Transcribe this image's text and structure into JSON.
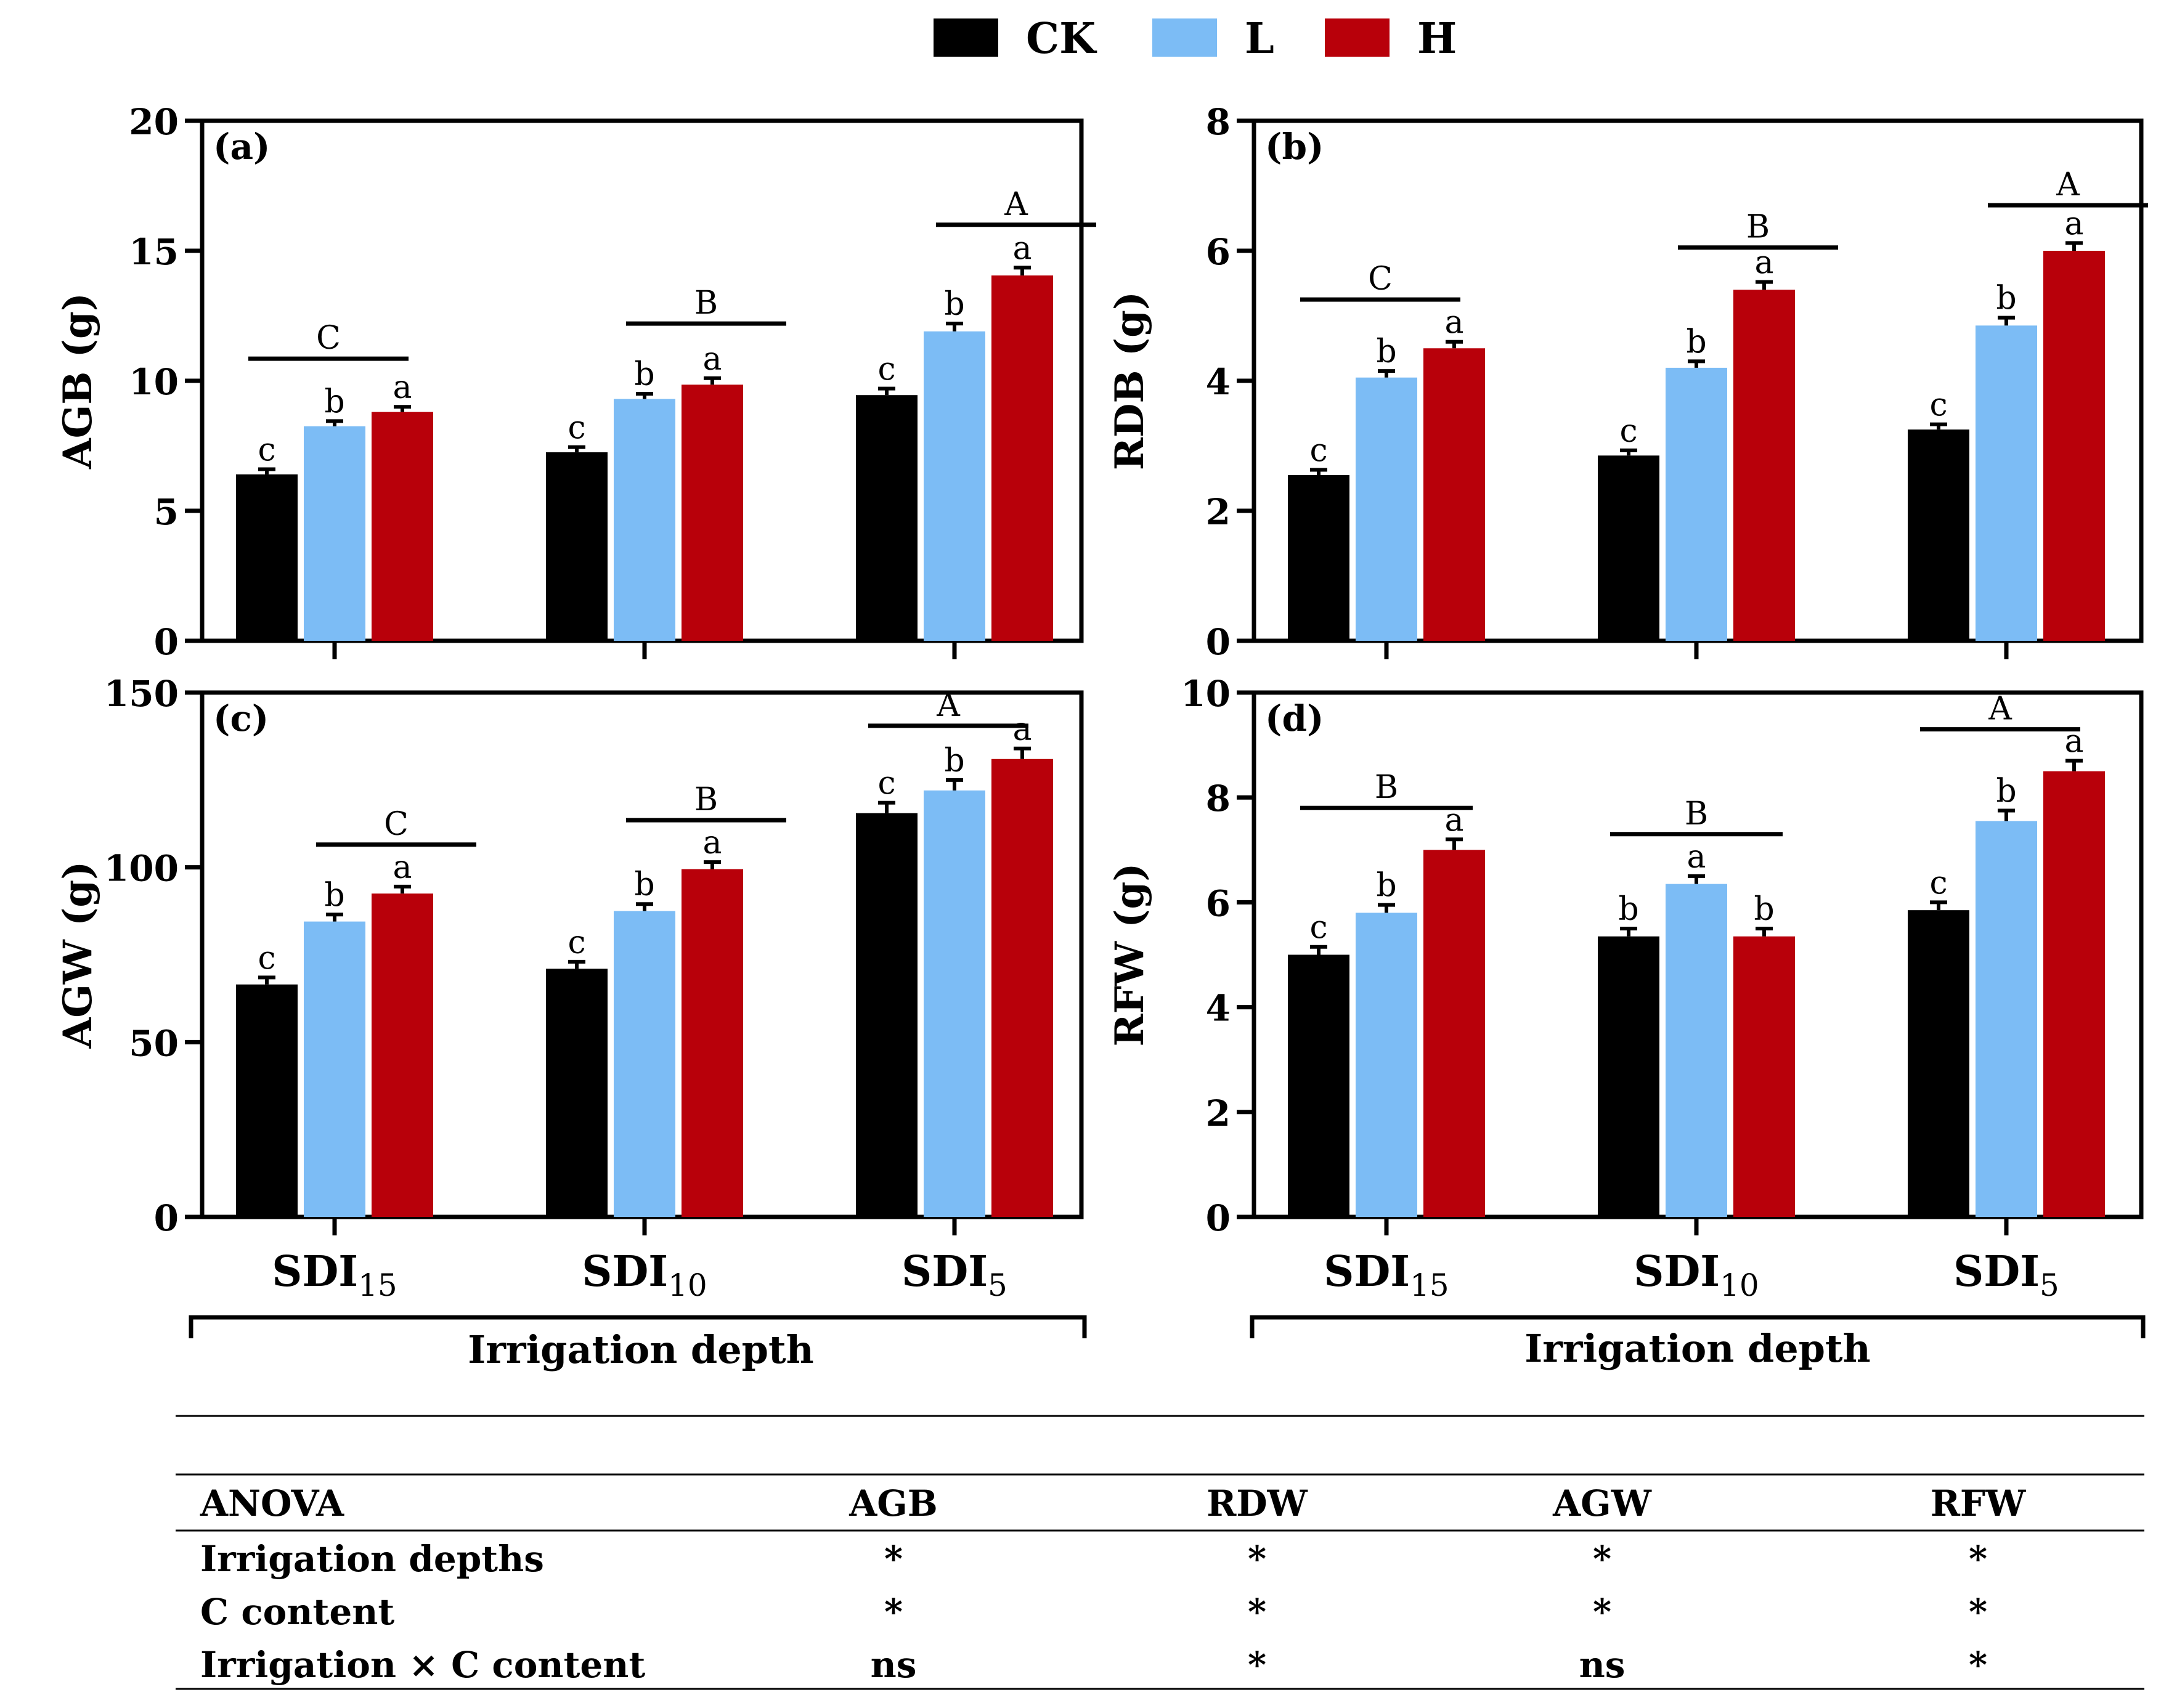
{
  "legend": [
    {
      "name": "CK",
      "color": "#000000"
    },
    {
      "name": "L",
      "color": "#7cbcf5"
    },
    {
      "name": "H",
      "color": "#b8000a"
    }
  ],
  "chart_data": [
    {
      "type": "bar",
      "panel": "(a)",
      "ylabel": "AGB (g)",
      "ylim": [
        0,
        20
      ],
      "yticks": [
        "0",
        "5",
        "10",
        "15",
        "20"
      ],
      "show_xlabels": false,
      "categories": [
        {
          "main": "SDI",
          "sub": "15"
        },
        {
          "main": "SDI",
          "sub": "10"
        },
        {
          "main": "SDI",
          "sub": "5"
        }
      ],
      "series": [
        {
          "name": "CK",
          "values": [
            6.4,
            7.25,
            9.45
          ],
          "errors": [
            0.2,
            0.2,
            0.25
          ],
          "letters": [
            "c",
            "c",
            "c"
          ]
        },
        {
          "name": "L",
          "values": [
            8.25,
            9.3,
            11.9
          ],
          "errors": [
            0.2,
            0.2,
            0.3
          ],
          "letters": [
            "b",
            "b",
            "b"
          ]
        },
        {
          "name": "H",
          "values": [
            8.8,
            9.85,
            14.05
          ],
          "errors": [
            0.2,
            0.25,
            0.3
          ],
          "letters": [
            "a",
            "a",
            "a"
          ]
        }
      ],
      "groups": [
        {
          "letter": "C",
          "at": 10.85,
          "from": 0,
          "to": 1
        },
        {
          "letter": "B",
          "at": 12.2,
          "from": 1,
          "to": 2
        },
        {
          "letter": "A",
          "at": 16.0,
          "from": 1,
          "to": 2
        }
      ]
    },
    {
      "type": "bar",
      "panel": "(b)",
      "ylabel": "RDB (g)",
      "ylim": [
        0,
        8
      ],
      "yticks": [
        "0",
        "2",
        "4",
        "6",
        "8"
      ],
      "show_xlabels": false,
      "categories": [
        {
          "main": "SDI",
          "sub": "15"
        },
        {
          "main": "SDI",
          "sub": "10"
        },
        {
          "main": "SDI",
          "sub": "5"
        }
      ],
      "series": [
        {
          "name": "CK",
          "values": [
            2.55,
            2.85,
            3.25
          ],
          "errors": [
            0.08,
            0.08,
            0.08
          ],
          "letters": [
            "c",
            "c",
            "c"
          ]
        },
        {
          "name": "L",
          "values": [
            4.05,
            4.2,
            4.85
          ],
          "errors": [
            0.1,
            0.1,
            0.12
          ],
          "letters": [
            "b",
            "b",
            "b"
          ]
        },
        {
          "name": "H",
          "values": [
            4.5,
            5.4,
            6.0
          ],
          "errors": [
            0.1,
            0.12,
            0.12
          ],
          "letters": [
            "a",
            "a",
            "a"
          ]
        }
      ],
      "groups": [
        {
          "letter": "C",
          "at": 5.25,
          "from": 0,
          "to": 1
        },
        {
          "letter": "B",
          "at": 6.05,
          "from": 1,
          "to": 2
        },
        {
          "letter": "A",
          "at": 6.7,
          "from": 1,
          "to": 2
        }
      ]
    },
    {
      "type": "bar",
      "panel": "(c)",
      "ylabel": "AGW (g)",
      "ylim": [
        0,
        150
      ],
      "yticks": [
        "0",
        "50",
        "100",
        "150"
      ],
      "show_xlabels": true,
      "categories": [
        {
          "main": "SDI",
          "sub": "15"
        },
        {
          "main": "SDI",
          "sub": "10"
        },
        {
          "main": "SDI",
          "sub": "5"
        }
      ],
      "series": [
        {
          "name": "CK",
          "values": [
            66.5,
            71.0,
            115.5
          ],
          "errors": [
            2.0,
            2.0,
            3.0
          ],
          "letters": [
            "c",
            "c",
            "c"
          ]
        },
        {
          "name": "L",
          "values": [
            84.5,
            87.5,
            122.0
          ],
          "errors": [
            2.0,
            2.0,
            3.0
          ],
          "letters": [
            "b",
            "b",
            "b"
          ]
        },
        {
          "name": "H",
          "values": [
            92.5,
            99.5,
            131.0
          ],
          "errors": [
            2.0,
            2.0,
            3.0
          ],
          "letters": [
            "a",
            "a",
            "a"
          ]
        }
      ],
      "groups": [
        {
          "letter": "C",
          "at": 106.5,
          "from": 1,
          "to": 2
        },
        {
          "letter": "B",
          "at": 113.5,
          "from": 1,
          "to": 2
        },
        {
          "letter": "A",
          "at": 140.5,
          "from": 0,
          "to": 1
        }
      ]
    },
    {
      "type": "bar",
      "panel": "(d)",
      "ylabel": "RFW (g)",
      "ylim": [
        0,
        10
      ],
      "yticks": [
        "0",
        "2",
        "4",
        "6",
        "8",
        "10"
      ],
      "show_xlabels": true,
      "categories": [
        {
          "main": "SDI",
          "sub": "15"
        },
        {
          "main": "SDI",
          "sub": "10"
        },
        {
          "main": "SDI",
          "sub": "5"
        }
      ],
      "series": [
        {
          "name": "CK",
          "values": [
            5.0,
            5.35,
            5.85
          ],
          "errors": [
            0.15,
            0.15,
            0.15
          ],
          "letters": [
            "c",
            "b",
            "c"
          ]
        },
        {
          "name": "L",
          "values": [
            5.8,
            6.35,
            7.55
          ],
          "errors": [
            0.15,
            0.15,
            0.2
          ],
          "letters": [
            "b",
            "a",
            "b"
          ]
        },
        {
          "name": "H",
          "values": [
            7.0,
            5.35,
            8.5
          ],
          "errors": [
            0.2,
            0.15,
            0.2
          ],
          "letters": [
            "a",
            "b",
            "a"
          ]
        }
      ],
      "groups": [
        {
          "letter": "B",
          "at": 7.8,
          "from": 0,
          "to": 2
        },
        {
          "letter": "B",
          "at": 7.3,
          "from": 0,
          "to": 2
        },
        {
          "letter": "A",
          "at": 9.3,
          "from": 0,
          "to": 1
        }
      ]
    }
  ],
  "xlabel_bracket": "Irrigation depth",
  "anova": {
    "headers": [
      "ANOVA",
      "AGB",
      "RDW",
      "AGW",
      "RFW"
    ],
    "rows": [
      [
        "Irrigation depths",
        "*",
        "*",
        "*",
        "*"
      ],
      [
        "C content",
        "*",
        "*",
        "*",
        "*"
      ],
      [
        "Irrigation × C content",
        "ns",
        "*",
        "ns",
        "*"
      ]
    ]
  }
}
